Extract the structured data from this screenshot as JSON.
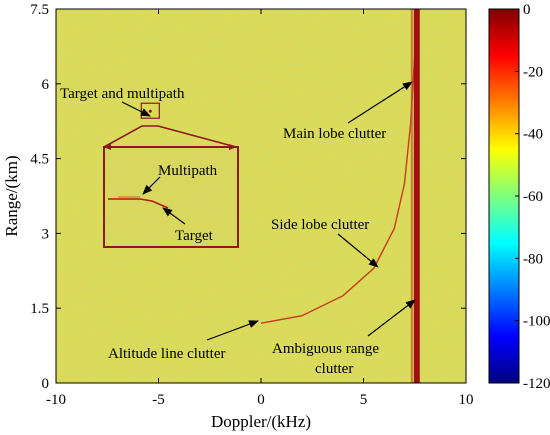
{
  "chart_data": {
    "type": "heatmap",
    "xlabel": "Doppler/(kHz)",
    "ylabel": "Range/(km)",
    "xlim": [
      -10,
      10
    ],
    "ylim": [
      0,
      7.5
    ],
    "xticks": [
      "-10",
      "-5",
      "0",
      "5",
      "10"
    ],
    "xtick_values": [
      -10,
      -5,
      0,
      5,
      10
    ],
    "yticks": [
      "0",
      "1.5",
      "3",
      "4.5",
      "6",
      "7.5"
    ],
    "ytick_values": [
      0,
      1.5,
      3,
      4.5,
      6,
      7.5
    ],
    "colorbar": {
      "range": [
        -120,
        0
      ],
      "ticks": [
        "0",
        "-20",
        "-40",
        "-60",
        "-80",
        "-100",
        "-120"
      ],
      "tick_values": [
        0,
        -20,
        -40,
        -60,
        -80,
        -100,
        -120
      ],
      "colormap": "jet"
    },
    "background_level_db": -45,
    "features": {
      "main_lobe_doppler_khz": 7.6,
      "altitude_line_start": [
        0,
        1.2
      ],
      "side_lobe_curve": [
        [
          0,
          1.2
        ],
        [
          2,
          1.35
        ],
        [
          4,
          1.75
        ],
        [
          5.5,
          2.3
        ],
        [
          6.5,
          3.1
        ],
        [
          7.0,
          4.0
        ],
        [
          7.3,
          5.2
        ],
        [
          7.5,
          6.6
        ],
        [
          7.6,
          7.5
        ]
      ],
      "target_location": [
        -5.4,
        5.45
      ]
    },
    "annotations": [
      {
        "text": "Target and multipath"
      },
      {
        "text": "Main lobe clutter"
      },
      {
        "text": "Side lobe clutter"
      },
      {
        "text": "Altitude line clutter"
      },
      {
        "text": "Ambiguous range"
      },
      {
        "text": "clutter"
      },
      {
        "text": "Multipath"
      },
      {
        "text": "Target"
      }
    ]
  },
  "colors": {
    "background": "#e8d84a",
    "clutter": "#a01010",
    "inset_border": "#8b1a1a",
    "arrow": "#000000"
  }
}
